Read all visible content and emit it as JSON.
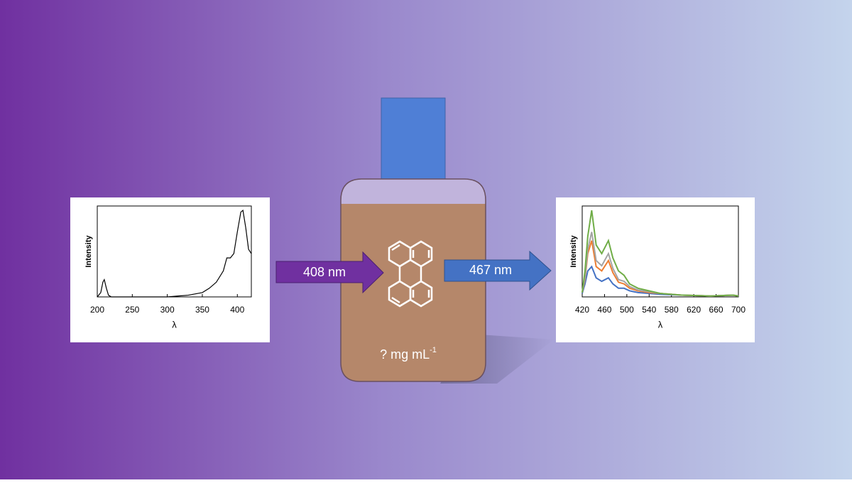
{
  "absorption_chart": {
    "ylabel": "Intensity",
    "xlabel": "λ",
    "xlim": [
      200,
      420
    ],
    "xticks": [
      200,
      250,
      300,
      350,
      400
    ],
    "ylim": [
      0,
      1.05
    ],
    "x": [
      200,
      205,
      208,
      210,
      213,
      216,
      220,
      300,
      330,
      350,
      360,
      370,
      380,
      385,
      390,
      395,
      400,
      405,
      408,
      412,
      416,
      420
    ],
    "series": [
      {
        "color": "#000000",
        "values": [
          0,
          0.05,
          0.17,
          0.2,
          0.1,
          0.02,
          0,
          0,
          0.02,
          0.05,
          0.1,
          0.17,
          0.3,
          0.45,
          0.45,
          0.5,
          0.75,
          0.98,
          1.0,
          0.8,
          0.55,
          0.5
        ]
      }
    ]
  },
  "excitation_arrow": {
    "label": "408 nm",
    "color": "#7030a0"
  },
  "bottle": {
    "label": "? mg mL",
    "label_superscript": "-1"
  },
  "emission_arrow": {
    "label": "467 nm",
    "color": "#4472c4"
  },
  "emission_chart": {
    "ylabel": "Intensity",
    "xlabel": "λ",
    "xlim": [
      420,
      700
    ],
    "xticks": [
      420,
      460,
      500,
      540,
      580,
      620,
      660,
      700
    ],
    "ylim": [
      0,
      1.05
    ],
    "x": [
      420,
      425,
      430,
      437,
      445,
      455,
      467,
      475,
      485,
      495,
      505,
      520,
      540,
      560,
      600,
      650,
      690,
      700
    ],
    "series": [
      {
        "color": "#4472c4",
        "values": [
          0.04,
          0.15,
          0.3,
          0.35,
          0.22,
          0.18,
          0.22,
          0.15,
          0.1,
          0.1,
          0.07,
          0.05,
          0.04,
          0.03,
          0.02,
          0.01,
          0.02,
          0.01
        ]
      },
      {
        "color": "#ed7d31",
        "values": [
          0.05,
          0.2,
          0.5,
          0.65,
          0.35,
          0.3,
          0.42,
          0.28,
          0.17,
          0.15,
          0.1,
          0.07,
          0.05,
          0.04,
          0.02,
          0.01,
          0.02,
          0.01
        ]
      },
      {
        "color": "#a5a5a5",
        "values": [
          0.05,
          0.22,
          0.55,
          0.75,
          0.42,
          0.36,
          0.5,
          0.33,
          0.2,
          0.18,
          0.12,
          0.08,
          0.06,
          0.04,
          0.02,
          0.01,
          0.02,
          0.01
        ]
      },
      {
        "color": "#70ad47",
        "values": [
          0.05,
          0.3,
          0.7,
          1.0,
          0.6,
          0.5,
          0.65,
          0.45,
          0.3,
          0.25,
          0.15,
          0.1,
          0.07,
          0.04,
          0.02,
          0.01,
          0.02,
          0.01
        ]
      }
    ]
  }
}
